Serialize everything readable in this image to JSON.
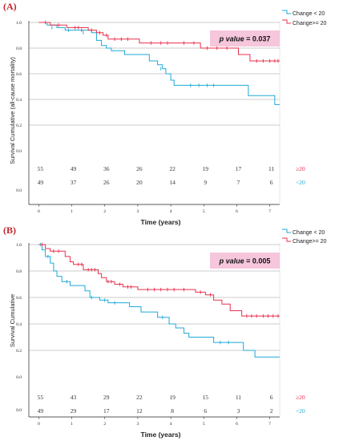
{
  "chart_data": [
    {
      "panel": "(A)",
      "type": "line",
      "ylabel": "Survival Cumulative (all-cause mortality)",
      "xlabel": "Time (years)",
      "xlim": [
        -0.3,
        7.3
      ],
      "ylim": [
        0,
        1.0
      ],
      "x_ticks": [
        "0",
        "1",
        "2",
        "3",
        "4",
        "5",
        "6",
        "7"
      ],
      "y_ticks": [
        "0.0",
        "0.2",
        "0.4",
        "0.6",
        "0.8",
        "1.0"
      ],
      "p_value": {
        "label": "p value",
        "value": " = 0.037"
      },
      "legend": {
        "position": "top-right"
      },
      "series": [
        {
          "name": "Change < 20",
          "color": "#1fa9d8",
          "steps": [
            [
              0,
              1.0
            ],
            [
              0.25,
              0.98
            ],
            [
              0.55,
              0.96
            ],
            [
              0.8,
              0.94
            ],
            [
              1.6,
              0.92
            ],
            [
              1.75,
              0.86
            ],
            [
              1.9,
              0.82
            ],
            [
              2.05,
              0.8
            ],
            [
              2.2,
              0.78
            ],
            [
              2.6,
              0.75
            ],
            [
              3.35,
              0.7
            ],
            [
              3.6,
              0.67
            ],
            [
              3.75,
              0.64
            ],
            [
              3.85,
              0.6
            ],
            [
              4.0,
              0.55
            ],
            [
              4.1,
              0.51
            ],
            [
              6.35,
              0.43
            ],
            [
              7.15,
              0.36
            ]
          ],
          "end": 7.3,
          "censors": [
            [
              0.4,
              0.96
            ],
            [
              0.9,
              0.94
            ],
            [
              1.35,
              0.92
            ],
            [
              3.7,
              0.64
            ],
            [
              4.6,
              0.51
            ],
            [
              4.85,
              0.51
            ],
            [
              5.1,
              0.51
            ],
            [
              5.3,
              0.51
            ]
          ]
        },
        {
          "name": "Change>= 20",
          "color": "#e8304d",
          "steps": [
            [
              0,
              1.0
            ],
            [
              0.35,
              0.98
            ],
            [
              0.85,
              0.96
            ],
            [
              1.5,
              0.94
            ],
            [
              1.75,
              0.92
            ],
            [
              1.95,
              0.9
            ],
            [
              2.1,
              0.87
            ],
            [
              3.05,
              0.84
            ],
            [
              4.9,
              0.8
            ],
            [
              6.05,
              0.75
            ],
            [
              6.4,
              0.7
            ]
          ],
          "end": 7.3,
          "censors": [
            [
              0.2,
              1.0
            ],
            [
              0.6,
              0.98
            ],
            [
              1.1,
              0.96
            ],
            [
              1.2,
              0.96
            ],
            [
              1.3,
              0.94
            ],
            [
              1.6,
              0.94
            ],
            [
              1.85,
              0.92
            ],
            [
              2.05,
              0.9
            ],
            [
              2.3,
              0.87
            ],
            [
              2.5,
              0.87
            ],
            [
              2.7,
              0.87
            ],
            [
              3.4,
              0.84
            ],
            [
              3.7,
              0.84
            ],
            [
              3.9,
              0.84
            ],
            [
              4.4,
              0.84
            ],
            [
              4.7,
              0.84
            ],
            [
              5.1,
              0.8
            ],
            [
              5.4,
              0.8
            ],
            [
              5.7,
              0.8
            ],
            [
              6.6,
              0.7
            ],
            [
              6.8,
              0.7
            ],
            [
              7.0,
              0.7
            ],
            [
              7.15,
              0.7
            ],
            [
              7.25,
              0.7
            ]
          ]
        }
      ],
      "risk_table": {
        "rows": [
          {
            "group": "≥20",
            "color": "#e8304d",
            "counts": [
              "55",
              "49",
              "36",
              "26",
              "22",
              "19",
              "17",
              "11"
            ]
          },
          {
            "group": "<20",
            "color": "#1fa9d8",
            "counts": [
              "49",
              "37",
              "26",
              "20",
              "14",
              "9",
              "7",
              "6"
            ]
          }
        ]
      }
    },
    {
      "panel": "(B)",
      "type": "line",
      "ylabel": "Survival Cumulative",
      "xlabel": "Time (years)",
      "xlim": [
        -0.3,
        7.3
      ],
      "ylim": [
        0,
        1.0
      ],
      "x_ticks": [
        "0",
        "1",
        "2",
        "3",
        "4",
        "5",
        "6",
        "7"
      ],
      "y_ticks": [
        "0.0",
        "0.2",
        "0.4",
        "0.6",
        "0.8",
        "1.0"
      ],
      "p_value": {
        "label": "p value",
        "value": " = 0.005"
      },
      "legend": {
        "position": "top-right"
      },
      "series": [
        {
          "name": "Change < 20",
          "color": "#1fa9d8",
          "steps": [
            [
              0,
              1.0
            ],
            [
              0.1,
              0.96
            ],
            [
              0.2,
              0.91
            ],
            [
              0.35,
              0.86
            ],
            [
              0.45,
              0.8
            ],
            [
              0.55,
              0.76
            ],
            [
              0.7,
              0.72
            ],
            [
              0.95,
              0.69
            ],
            [
              1.4,
              0.65
            ],
            [
              1.55,
              0.6
            ],
            [
              1.85,
              0.58
            ],
            [
              2.1,
              0.56
            ],
            [
              2.75,
              0.53
            ],
            [
              3.1,
              0.49
            ],
            [
              3.6,
              0.45
            ],
            [
              3.95,
              0.4
            ],
            [
              4.15,
              0.37
            ],
            [
              4.4,
              0.33
            ],
            [
              4.55,
              0.3
            ],
            [
              5.3,
              0.26
            ],
            [
              6.2,
              0.2
            ],
            [
              6.55,
              0.15
            ]
          ],
          "end": 7.3,
          "censors": [
            [
              0.05,
              1.0
            ],
            [
              0.28,
              0.91
            ],
            [
              0.85,
              0.72
            ],
            [
              1.6,
              0.6
            ],
            [
              2.0,
              0.58
            ],
            [
              2.3,
              0.56
            ],
            [
              3.75,
              0.45
            ],
            [
              5.5,
              0.26
            ],
            [
              5.75,
              0.26
            ]
          ]
        },
        {
          "name": "Change>= 20",
          "color": "#e8304d",
          "steps": [
            [
              0,
              1.0
            ],
            [
              0.2,
              0.97
            ],
            [
              0.35,
              0.95
            ],
            [
              0.8,
              0.91
            ],
            [
              0.95,
              0.87
            ],
            [
              1.05,
              0.85
            ],
            [
              1.35,
              0.81
            ],
            [
              1.8,
              0.78
            ],
            [
              1.9,
              0.75
            ],
            [
              2.05,
              0.72
            ],
            [
              2.3,
              0.7
            ],
            [
              2.55,
              0.68
            ],
            [
              3.0,
              0.66
            ],
            [
              4.75,
              0.64
            ],
            [
              5.05,
              0.62
            ],
            [
              5.3,
              0.58
            ],
            [
              5.55,
              0.55
            ],
            [
              5.8,
              0.5
            ],
            [
              6.15,
              0.46
            ]
          ],
          "end": 7.3,
          "censors": [
            [
              0.1,
              1.0
            ],
            [
              0.45,
              0.95
            ],
            [
              0.6,
              0.95
            ],
            [
              1.2,
              0.85
            ],
            [
              1.3,
              0.85
            ],
            [
              1.5,
              0.81
            ],
            [
              1.6,
              0.81
            ],
            [
              1.7,
              0.81
            ],
            [
              2.1,
              0.72
            ],
            [
              2.2,
              0.72
            ],
            [
              2.45,
              0.7
            ],
            [
              2.7,
              0.68
            ],
            [
              2.8,
              0.68
            ],
            [
              3.3,
              0.66
            ],
            [
              3.5,
              0.66
            ],
            [
              3.7,
              0.66
            ],
            [
              3.9,
              0.66
            ],
            [
              4.1,
              0.66
            ],
            [
              4.4,
              0.66
            ],
            [
              4.9,
              0.64
            ],
            [
              5.2,
              0.62
            ],
            [
              6.3,
              0.46
            ],
            [
              6.45,
              0.46
            ],
            [
              6.6,
              0.46
            ],
            [
              6.8,
              0.46
            ],
            [
              6.95,
              0.46
            ],
            [
              7.1,
              0.46
            ],
            [
              7.25,
              0.46
            ]
          ]
        }
      ],
      "risk_table": {
        "rows": [
          {
            "group": "≥20",
            "color": "#e8304d",
            "counts": [
              "55",
              "43",
              "29",
              "22",
              "19",
              "15",
              "11",
              "6"
            ]
          },
          {
            "group": "<20",
            "color": "#1fa9d8",
            "counts": [
              "49",
              "29",
              "17",
              "12",
              "8",
              "6",
              "3",
              "2"
            ]
          }
        ]
      }
    }
  ]
}
